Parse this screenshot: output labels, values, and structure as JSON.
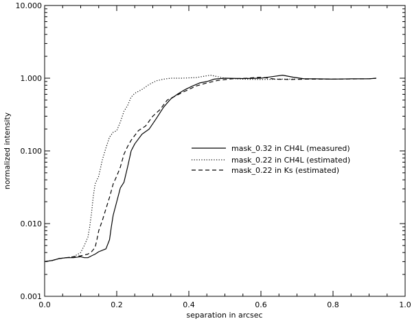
{
  "chart_data": {
    "type": "line",
    "title": "",
    "xlabel": "separation in arcsec",
    "ylabel": "normalized intensity",
    "xlim": [
      0.0,
      1.0
    ],
    "ylim": [
      0.001,
      10.0
    ],
    "yscale": "log",
    "grid": false,
    "legend_position": "center-right",
    "x_ticks": [
      {
        "v": 0.0,
        "label": "0.0"
      },
      {
        "v": 0.2,
        "label": "0.2"
      },
      {
        "v": 0.4,
        "label": "0.4"
      },
      {
        "v": 0.6,
        "label": "0.6"
      },
      {
        "v": 0.8,
        "label": "0.8"
      },
      {
        "v": 1.0,
        "label": "1.0"
      }
    ],
    "y_ticks": [
      {
        "v": 0.001,
        "label": "0.001"
      },
      {
        "v": 0.01,
        "label": "0.010"
      },
      {
        "v": 0.1,
        "label": "0.100"
      },
      {
        "v": 1.0,
        "label": "1.000"
      },
      {
        "v": 10.0,
        "label": "10.000"
      }
    ],
    "series": [
      {
        "name": "mask_0.32 in CH4L (measured)",
        "dash": "solid",
        "x": [
          0.0,
          0.02,
          0.04,
          0.06,
          0.08,
          0.1,
          0.11,
          0.12,
          0.13,
          0.14,
          0.15,
          0.16,
          0.17,
          0.18,
          0.185,
          0.19,
          0.2,
          0.21,
          0.22,
          0.23,
          0.24,
          0.25,
          0.27,
          0.29,
          0.31,
          0.33,
          0.35,
          0.37,
          0.39,
          0.41,
          0.43,
          0.45,
          0.47,
          0.5,
          0.55,
          0.6,
          0.63,
          0.66,
          0.69,
          0.72,
          0.75,
          0.8,
          0.85,
          0.9,
          0.92
        ],
        "y": [
          0.003,
          0.0031,
          0.0033,
          0.0034,
          0.0034,
          0.0035,
          0.0034,
          0.0034,
          0.0036,
          0.0038,
          0.0041,
          0.0043,
          0.0045,
          0.006,
          0.009,
          0.013,
          0.02,
          0.031,
          0.037,
          0.06,
          0.1,
          0.125,
          0.17,
          0.2,
          0.28,
          0.4,
          0.52,
          0.61,
          0.7,
          0.78,
          0.86,
          0.9,
          0.97,
          1.0,
          0.99,
          1.0,
          1.05,
          1.1,
          1.03,
          0.98,
          0.98,
          0.97,
          0.98,
          0.98,
          1.0
        ]
      },
      {
        "name": "mask_0.22 in CH4L (estimated)",
        "dash": "dotted",
        "x": [
          0.0,
          0.02,
          0.04,
          0.06,
          0.08,
          0.1,
          0.11,
          0.12,
          0.125,
          0.13,
          0.135,
          0.14,
          0.15,
          0.16,
          0.17,
          0.18,
          0.19,
          0.2,
          0.21,
          0.22,
          0.23,
          0.24,
          0.25,
          0.27,
          0.29,
          0.31,
          0.33,
          0.35,
          0.38,
          0.42,
          0.46,
          0.5,
          0.55,
          0.6,
          0.65,
          0.7
        ],
        "y": [
          0.003,
          0.0031,
          0.0033,
          0.0034,
          0.0035,
          0.004,
          0.005,
          0.0065,
          0.009,
          0.014,
          0.024,
          0.035,
          0.045,
          0.075,
          0.11,
          0.155,
          0.18,
          0.19,
          0.25,
          0.35,
          0.42,
          0.55,
          0.62,
          0.7,
          0.82,
          0.92,
          0.97,
          1.0,
          1.0,
          1.02,
          1.1,
          1.0,
          0.97,
          0.96,
          0.97,
          0.97
        ]
      },
      {
        "name": "mask_0.22 in Ks (estimated)",
        "dash": "dashed",
        "x": [
          0.0,
          0.02,
          0.04,
          0.06,
          0.08,
          0.1,
          0.12,
          0.13,
          0.14,
          0.145,
          0.15,
          0.16,
          0.17,
          0.18,
          0.19,
          0.2,
          0.21,
          0.22,
          0.23,
          0.24,
          0.26,
          0.28,
          0.3,
          0.32,
          0.34,
          0.36,
          0.38,
          0.4,
          0.42,
          0.45,
          0.48,
          0.52,
          0.56,
          0.6,
          0.64,
          0.68,
          0.72,
          0.8,
          0.9,
          0.92
        ],
        "y": [
          0.003,
          0.0031,
          0.0033,
          0.0034,
          0.0035,
          0.0036,
          0.0038,
          0.0041,
          0.0047,
          0.006,
          0.008,
          0.011,
          0.016,
          0.023,
          0.035,
          0.045,
          0.06,
          0.09,
          0.115,
          0.14,
          0.19,
          0.22,
          0.3,
          0.37,
          0.5,
          0.56,
          0.63,
          0.7,
          0.78,
          0.86,
          0.93,
          0.98,
          1.0,
          1.03,
          0.97,
          0.96,
          0.97,
          0.97,
          0.98,
          1.0
        ]
      }
    ]
  }
}
